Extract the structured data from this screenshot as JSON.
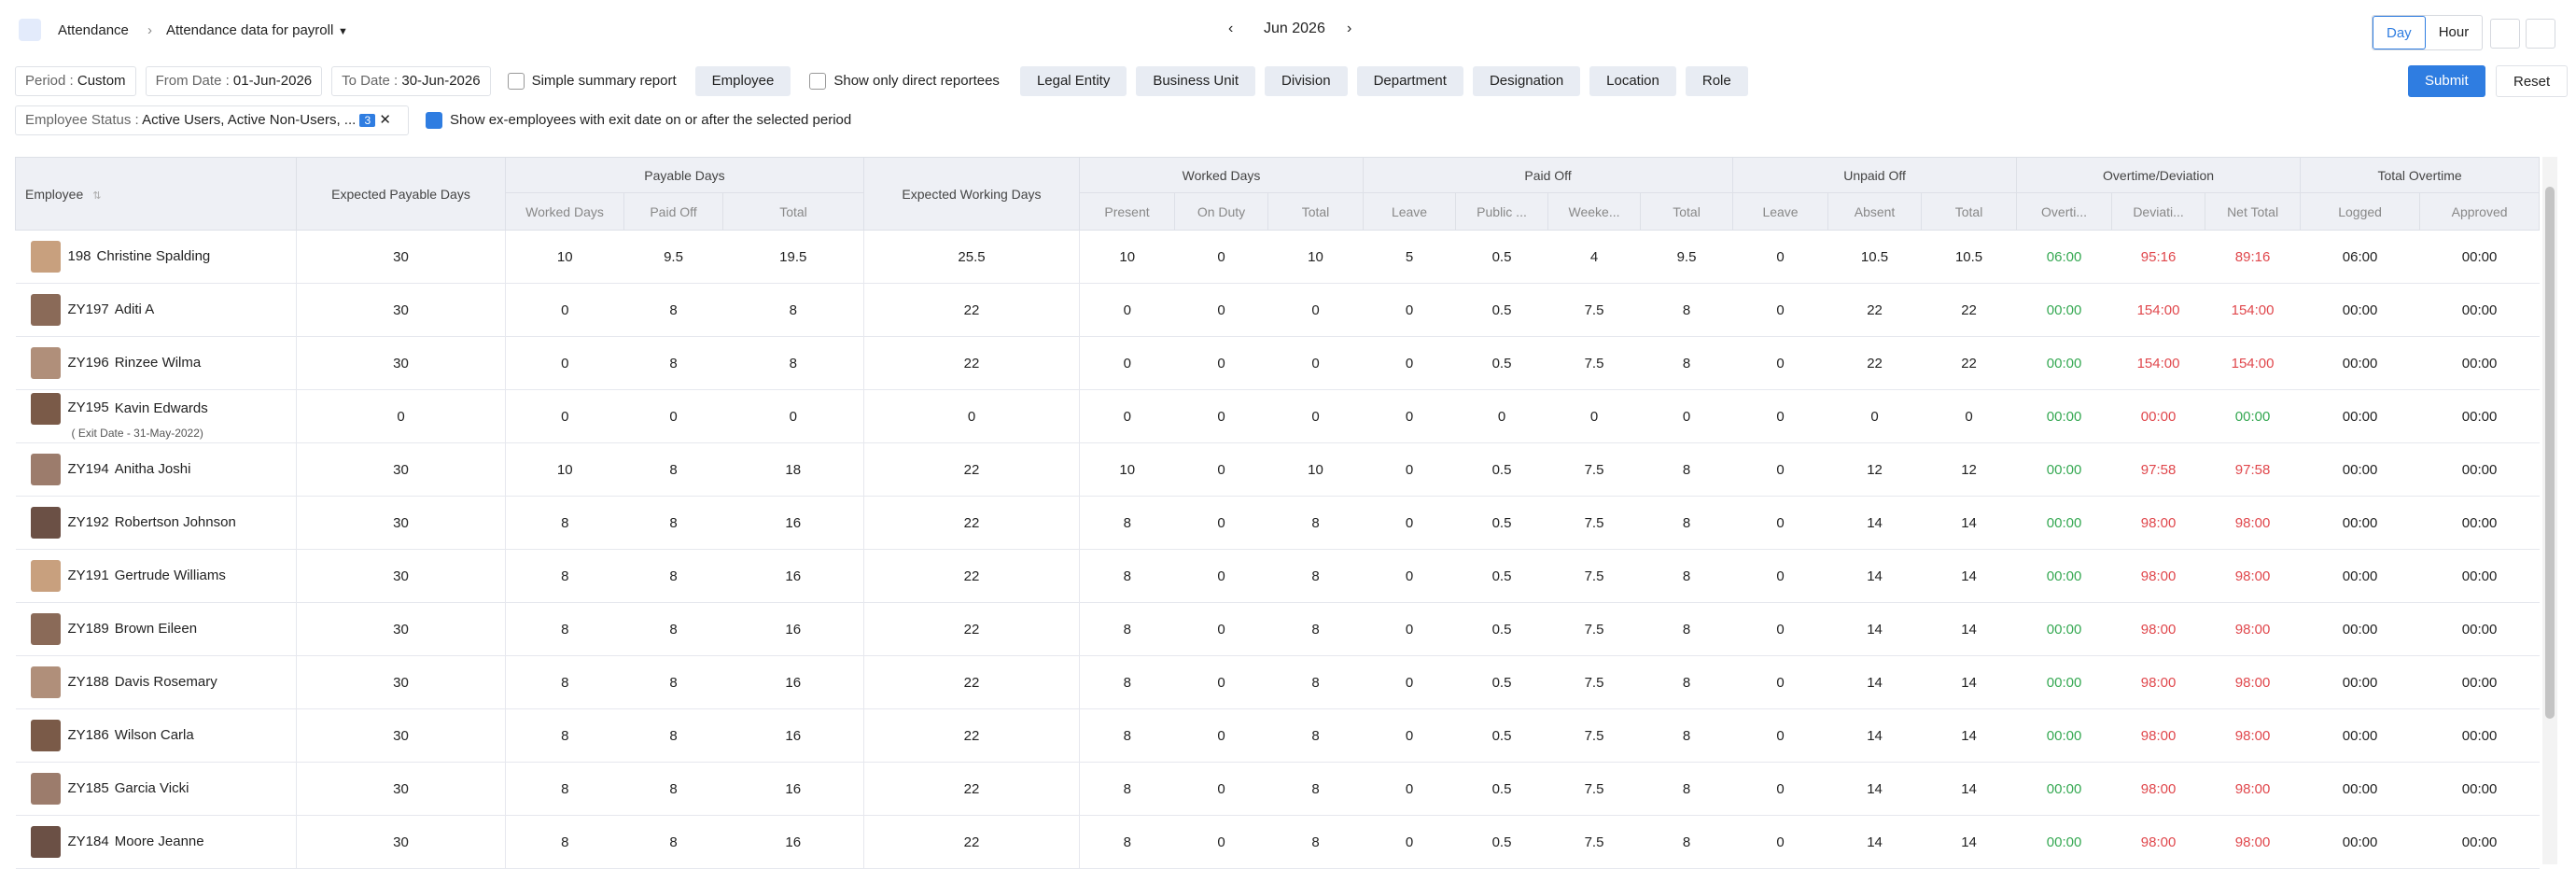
{
  "breadcrumb": {
    "module": "Attendance",
    "report": "Attendance data for payroll"
  },
  "period": "Jun 2026",
  "view_toggle": [
    "Day",
    "Hour"
  ],
  "filters": {
    "period_label": "Period :",
    "period_value": "Custom",
    "from_label": "From Date :",
    "from_value": "01-Jun-2026",
    "to_label": "To Date :",
    "to_value": "30-Jun-2026",
    "simple_summary": "Simple summary report",
    "employee": "Employee",
    "direct_reportees": "Show only direct reportees",
    "chips": [
      "Legal Entity",
      "Business Unit",
      "Division",
      "Department",
      "Designation",
      "Location",
      "Role"
    ],
    "submit": "Submit",
    "reset": "Reset",
    "status_label": "Employee Status :",
    "status_value": "Active Users, Active Non-Users, ...",
    "status_count": "3",
    "ex_employees": "Show ex-employees with exit date on or after the selected period"
  },
  "table": {
    "header": [
      {
        "label": "Employee"
      },
      {
        "label": "Expected Payable Days"
      },
      {
        "label": "Payable Days",
        "sub": [
          "Worked Days",
          "Paid Off",
          "Total"
        ]
      },
      {
        "label": "Expected Working Days"
      },
      {
        "label": "Worked Days",
        "sub": [
          "Present",
          "On Duty",
          "Total"
        ]
      },
      {
        "label": "Paid Off",
        "sub": [
          "Leave",
          "Public ...",
          "Weeke...",
          "Total"
        ]
      },
      {
        "label": "Unpaid Off",
        "sub": [
          "Leave",
          "Absent",
          "Total"
        ]
      },
      {
        "label": "Overtime/Deviation",
        "sub": [
          "Overti...",
          "Deviati...",
          "Net Total"
        ],
        "colors": [
          "#35a852",
          "#e0474c",
          "#e0474c"
        ]
      },
      {
        "label": "Total Overtime",
        "sub": [
          "Logged",
          "Approved"
        ]
      }
    ],
    "rows": [
      {
        "id": "198",
        "name": "Christine Spalding",
        "cells": [
          30,
          10,
          9.5,
          19.5,
          25.5,
          10,
          0,
          10,
          5,
          0.5,
          4,
          9.5,
          0,
          10.5,
          10.5,
          "06:00",
          "95:16",
          "89:16",
          "06:00",
          "00:00"
        ]
      },
      {
        "id": "ZY197",
        "name": "Aditi A",
        "cells": [
          30,
          0,
          8,
          8,
          22,
          0,
          0,
          0,
          0,
          0.5,
          7.5,
          8,
          0,
          22,
          22,
          "00:00",
          "154:00",
          "154:00",
          "00:00",
          "00:00"
        ]
      },
      {
        "id": "ZY196",
        "name": "Rinzee Wilma",
        "cells": [
          30,
          0,
          8,
          8,
          22,
          0,
          0,
          0,
          0,
          0.5,
          7.5,
          8,
          0,
          22,
          22,
          "00:00",
          "154:00",
          "154:00",
          "00:00",
          "00:00"
        ]
      },
      {
        "id": "ZY195",
        "name": "Kavin Edwards",
        "exit": "( Exit Date - 31-May-2022)",
        "cells": [
          0,
          0,
          0,
          0,
          0,
          0,
          0,
          0,
          0,
          0,
          0,
          0,
          0,
          0,
          0,
          "00:00",
          "00:00",
          "00:00",
          "00:00",
          "00:00"
        ],
        "cell_colors": {
          "17": "#35a852"
        }
      },
      {
        "id": "ZY194",
        "name": "Anitha Joshi",
        "cells": [
          30,
          10,
          8,
          18,
          22,
          10,
          0,
          10,
          0,
          0.5,
          7.5,
          8,
          0,
          12,
          12,
          "00:00",
          "97:58",
          "97:58",
          "00:00",
          "00:00"
        ]
      },
      {
        "id": "ZY192",
        "name": "Robertson Johnson",
        "cells": [
          30,
          8,
          8,
          16,
          22,
          8,
          0,
          8,
          0,
          0.5,
          7.5,
          8,
          0,
          14,
          14,
          "00:00",
          "98:00",
          "98:00",
          "00:00",
          "00:00"
        ]
      },
      {
        "id": "ZY191",
        "name": "Gertrude Williams",
        "cells": [
          30,
          8,
          8,
          16,
          22,
          8,
          0,
          8,
          0,
          0.5,
          7.5,
          8,
          0,
          14,
          14,
          "00:00",
          "98:00",
          "98:00",
          "00:00",
          "00:00"
        ]
      },
      {
        "id": "ZY189",
        "name": "Brown Eileen",
        "cells": [
          30,
          8,
          8,
          16,
          22,
          8,
          0,
          8,
          0,
          0.5,
          7.5,
          8,
          0,
          14,
          14,
          "00:00",
          "98:00",
          "98:00",
          "00:00",
          "00:00"
        ]
      },
      {
        "id": "ZY188",
        "name": "Davis Rosemary",
        "cells": [
          30,
          8,
          8,
          16,
          22,
          8,
          0,
          8,
          0,
          0.5,
          7.5,
          8,
          0,
          14,
          14,
          "00:00",
          "98:00",
          "98:00",
          "00:00",
          "00:00"
        ]
      },
      {
        "id": "ZY186",
        "name": "Wilson Carla",
        "cells": [
          30,
          8,
          8,
          16,
          22,
          8,
          0,
          8,
          0,
          0.5,
          7.5,
          8,
          0,
          14,
          14,
          "00:00",
          "98:00",
          "98:00",
          "00:00",
          "00:00"
        ]
      },
      {
        "id": "ZY185",
        "name": "Garcia Vicki",
        "cells": [
          30,
          8,
          8,
          16,
          22,
          8,
          0,
          8,
          0,
          0.5,
          7.5,
          8,
          0,
          14,
          14,
          "00:00",
          "98:00",
          "98:00",
          "00:00",
          "00:00"
        ]
      },
      {
        "id": "ZY184",
        "name": "Moore Jeanne",
        "cells": [
          30,
          8,
          8,
          16,
          22,
          8,
          0,
          8,
          0,
          0.5,
          7.5,
          8,
          0,
          14,
          14,
          "00:00",
          "98:00",
          "98:00",
          "00:00",
          "00:00"
        ]
      }
    ]
  }
}
